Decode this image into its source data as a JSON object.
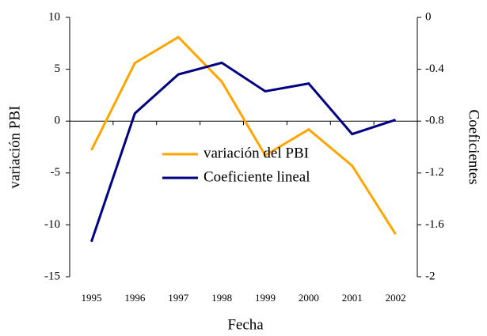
{
  "chart_data": {
    "type": "line",
    "x_label": "Fecha",
    "y_label": "variación PBI",
    "y2_label": "Coeficientes",
    "categories": [
      "1995",
      "1996",
      "1997",
      "1998",
      "1999",
      "2000",
      "2001",
      "2002"
    ],
    "series": [
      {
        "name": "variación del PBI",
        "color": "#ffa500",
        "values": [
          -2.8,
          5.6,
          8.1,
          3.8,
          -3.3,
          -0.8,
          -4.3,
          -10.9
        ]
      },
      {
        "name": "Coeficiente lineal",
        "color": "#000080",
        "axis": "y2",
        "values": [
          -1.73,
          -0.74,
          -0.44,
          -0.35,
          -0.57,
          -0.51,
          -0.9,
          -0.79
        ]
      }
    ],
    "ylim": [
      -15,
      10
    ],
    "yticks": [
      -15,
      -10,
      -5,
      0,
      5,
      10
    ],
    "y2lim": [
      -2,
      0
    ],
    "y2ticks": [
      -2,
      -1.6,
      -1.2,
      -0.8,
      -0.4,
      0
    ],
    "grid": false,
    "legend": "center-left"
  }
}
